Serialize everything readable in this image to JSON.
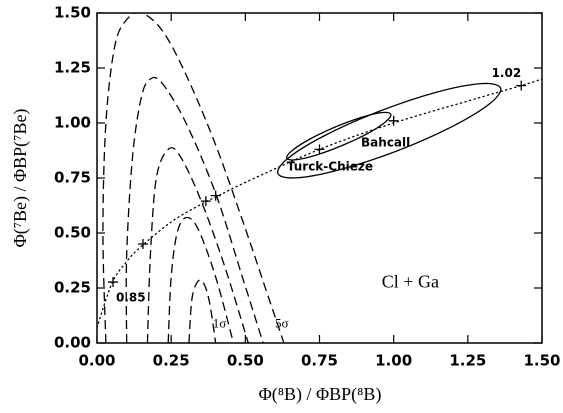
{
  "chart_data": {
    "type": "line",
    "xlabel": "Φ(⁸B) / ΦBP(⁸B)",
    "ylabel": "Φ(⁷Be) / ΦBP(⁷Be)",
    "xlim": [
      0,
      1.5
    ],
    "ylim": [
      0,
      1.5
    ],
    "xticks": [
      {
        "value": 0,
        "label": "0.00"
      },
      {
        "value": 0.25,
        "label": "0.25"
      },
      {
        "value": 0.5,
        "label": "0.50"
      },
      {
        "value": 0.75,
        "label": "0.75"
      },
      {
        "value": 1,
        "label": "1.00"
      },
      {
        "value": 1.25,
        "label": "1.25"
      },
      {
        "value": 1.5,
        "label": "1.50"
      }
    ],
    "yticks": [
      {
        "value": 0,
        "label": "0.00"
      },
      {
        "value": 0.25,
        "label": "0.25"
      },
      {
        "value": 0.5,
        "label": "0.50"
      },
      {
        "value": 0.75,
        "label": "0.75"
      },
      {
        "value": 1,
        "label": "1.00"
      },
      {
        "value": 1.25,
        "label": "1.25"
      },
      {
        "value": 1.5,
        "label": "1.50"
      }
    ],
    "series": [
      {
        "style": "dotted",
        "color": "#000000",
        "x": [
          0,
          0.05,
          0.1,
          0.15,
          0.25,
          0.35,
          0.41,
          0.5,
          0.75,
          1.0,
          1.25,
          1.43,
          1.5
        ],
        "y": [
          0.07,
          0.27,
          0.37,
          0.44,
          0.55,
          0.63,
          0.67,
          0.73,
          0.88,
          1.0,
          1.1,
          1.17,
          1.2
        ]
      },
      {
        "style": "markers",
        "color": "#000000",
        "x": [
          0.054,
          0.155,
          0.367,
          0.4,
          0.75,
          1.0,
          1.43
        ],
        "y": [
          0.277,
          0.45,
          0.645,
          0.67,
          0.88,
          1.01,
          1.17
        ]
      },
      {
        "style": "dashed",
        "color": "#000000",
        "x": [
          0.31,
          0.32,
          0.34,
          0.36,
          0.38,
          0.4
        ],
        "y": [
          0,
          0.2,
          0.28,
          0.27,
          0.18,
          0
        ]
      },
      {
        "style": "dashed",
        "color": "#000000",
        "x": [
          0.24,
          0.25,
          0.27,
          0.3,
          0.34,
          0.4,
          0.46
        ],
        "y": [
          0,
          0.3,
          0.5,
          0.57,
          0.52,
          0.3,
          0
        ]
      },
      {
        "style": "dashed",
        "color": "#000000",
        "x": [
          0.17,
          0.18,
          0.2,
          0.24,
          0.28,
          0.35,
          0.43,
          0.51
        ],
        "y": [
          0,
          0.4,
          0.75,
          0.88,
          0.85,
          0.65,
          0.35,
          0
        ]
      },
      {
        "style": "dashed",
        "color": "#000000",
        "x": [
          0.1,
          0.1,
          0.12,
          0.15,
          0.18,
          0.22,
          0.3,
          0.4,
          0.49,
          0.56
        ],
        "y": [
          0,
          0.4,
          0.85,
          1.12,
          1.2,
          1.18,
          1.0,
          0.68,
          0.3,
          0
        ]
      },
      {
        "style": "dashed",
        "color": "#000000",
        "x": [
          0.03,
          0.02,
          0.03,
          0.06,
          0.1,
          0.15,
          0.22,
          0.3,
          0.4,
          0.5,
          0.58,
          0.63
        ],
        "y": [
          0,
          0.5,
          1.0,
          1.35,
          1.47,
          1.5,
          1.42,
          1.22,
          0.9,
          0.52,
          0.2,
          0
        ]
      },
      {
        "style": "closed",
        "color": "#000000",
        "x": [
          1.36,
          1.295,
          1.147,
          0.955,
          0.772,
          0.645,
          0.61,
          0.675,
          0.824,
          1.015,
          1.199,
          1.325
        ],
        "y": [
          1.16,
          1.179,
          1.141,
          1.055,
          0.946,
          0.841,
          0.77,
          0.751,
          0.79,
          0.875,
          0.985,
          1.089
        ]
      },
      {
        "style": "closed",
        "color": "#000000",
        "x": [
          0.99,
          0.959,
          0.89,
          0.8,
          0.715,
          0.656,
          0.64,
          0.671,
          0.741,
          0.83,
          0.916,
          0.974
        ],
        "y": [
          1.04,
          1.047,
          1.025,
          0.98,
          0.925,
          0.873,
          0.84,
          0.833,
          0.855,
          0.9,
          0.955,
          1.007
        ]
      }
    ],
    "annotations": [
      "0.85",
      "1.02",
      "Bahcall",
      "Turck-Chieze",
      "Cl + Ga",
      "1σ",
      "5σ"
    ]
  }
}
